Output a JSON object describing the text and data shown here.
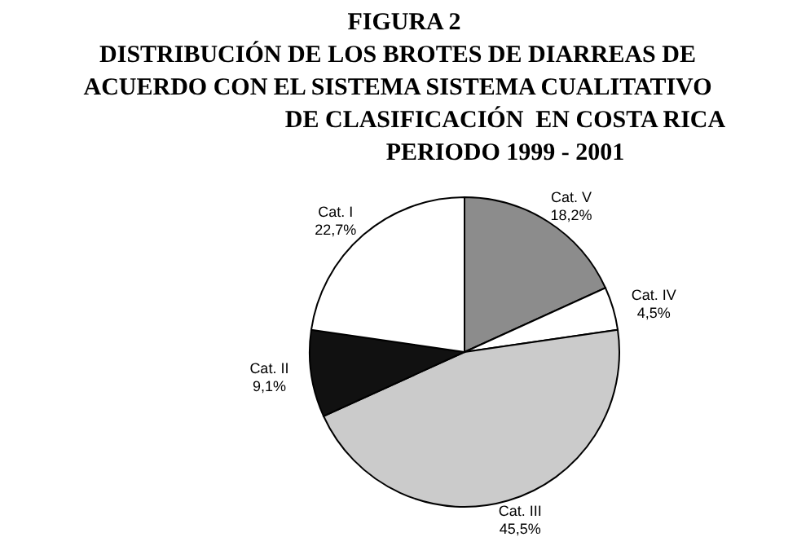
{
  "chart_data": {
    "type": "pie",
    "title": "FIGURA 2",
    "subtitle": "DISTRIBUCIÓN DE LOS BROTES DE DIARREAS DE\nACUERDO CON EL SISTEMA SISTEMA CUALITATIVO\nDE CLASIFICACIÓN  EN COSTA RICA\nPERIODO 1999 - 2001",
    "categories": [
      "Cat. V",
      "Cat. IV",
      "Cat. III",
      "Cat. II",
      "Cat. I"
    ],
    "values": [
      18.2,
      4.5,
      45.5,
      9.1,
      22.7
    ],
    "value_labels": [
      "18,2%",
      "4,5%",
      "45,5%",
      "9,1%",
      "22,7%"
    ],
    "colors": [
      "#8c8c8c",
      "#ffffff",
      "#cbcbcb",
      "#111111",
      "#ffffff"
    ]
  }
}
